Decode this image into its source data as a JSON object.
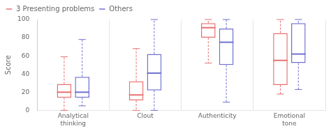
{
  "chart_data": {
    "type": "box",
    "categories": [
      "Analytical\nthinking",
      "Clout",
      "Authenticity",
      "Emotional\ntone"
    ],
    "series": [
      {
        "name": "3 Presenting problems",
        "color": "#e87070",
        "values": [
          {
            "whislo": 0,
            "q1": 14,
            "med": 20,
            "q3": 29,
            "whishi": 59
          },
          {
            "whislo": 0,
            "q1": 11,
            "med": 17,
            "q3": 32,
            "whishi": 68
          },
          {
            "whislo": 52,
            "q1": 80,
            "med": 91,
            "q3": 96,
            "whishi": 100
          },
          {
            "whislo": 18,
            "q1": 28,
            "med": 55,
            "q3": 85,
            "whishi": 100
          }
        ]
      },
      {
        "name": "Others",
        "color": "#7070d0",
        "values": [
          {
            "whislo": 5,
            "q1": 14,
            "med": 20,
            "q3": 37,
            "whishi": 78
          },
          {
            "whislo": 0,
            "q1": 22,
            "med": 41,
            "q3": 62,
            "whishi": 100
          },
          {
            "whislo": 9,
            "q1": 50,
            "med": 75,
            "q3": 90,
            "whishi": 100
          },
          {
            "whislo": 23,
            "q1": 52,
            "med": 62,
            "q3": 96,
            "whishi": 100
          }
        ]
      }
    ],
    "ylabel": "Score",
    "ylim": [
      0,
      100
    ],
    "yticks": [
      0,
      20,
      40,
      60,
      80,
      100
    ],
    "grid": "x",
    "legend": "upper left"
  }
}
